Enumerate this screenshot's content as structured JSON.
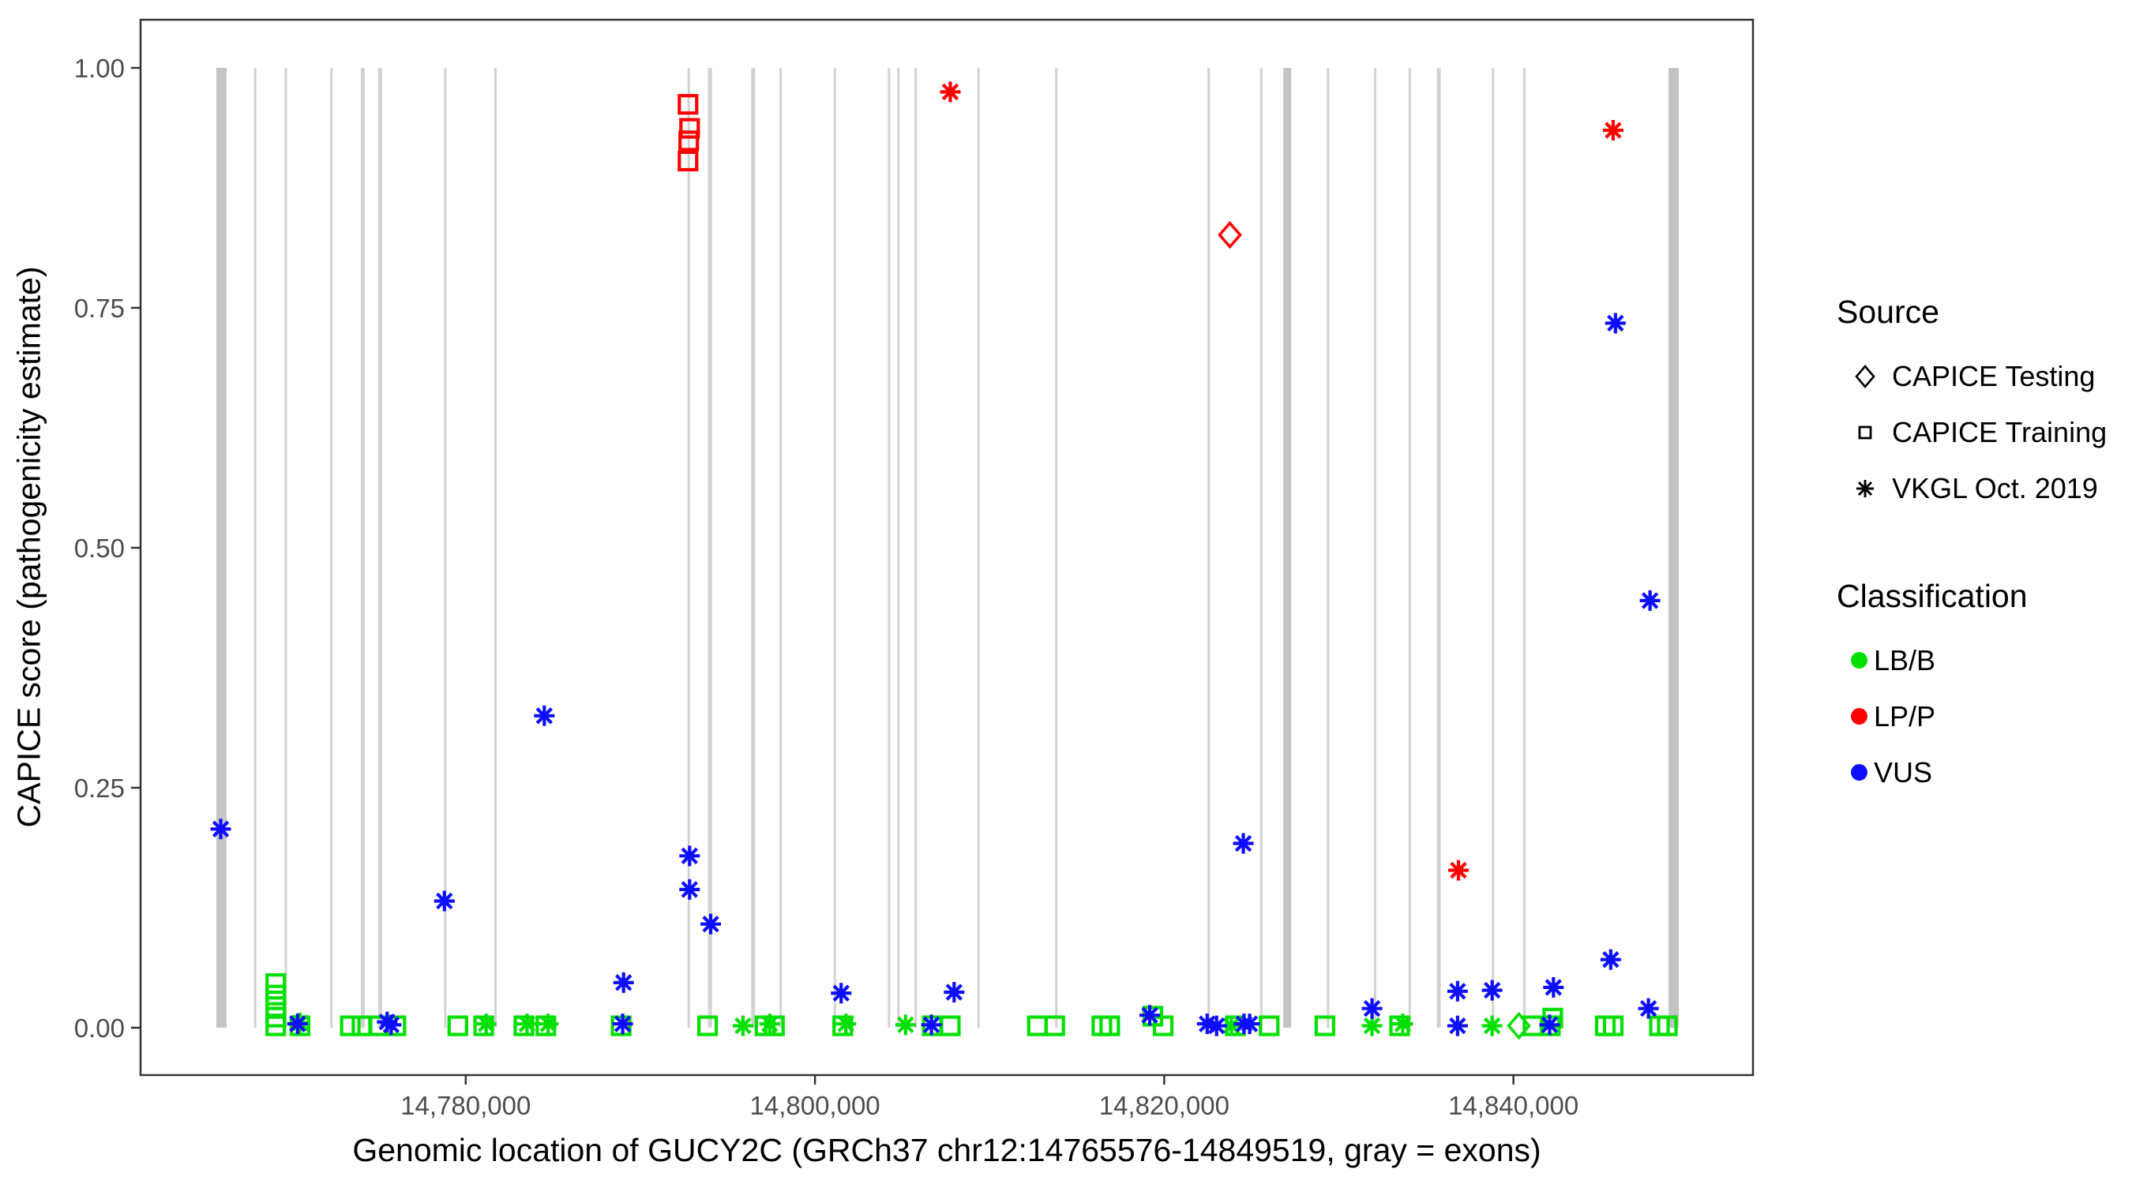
{
  "colors": {
    "LB/B": "#00E000",
    "LP/P": "#FF0000",
    "VUS": "#0D0DFF",
    "exon": "#D2D2D2",
    "exon_wide": "#C4C4C4",
    "axis_text": "#4D4D4D",
    "border": "#333333"
  },
  "legend": {
    "source": {
      "title": "Source",
      "items": [
        {
          "label": "CAPICE Testing",
          "shape": "diamond"
        },
        {
          "label": "CAPICE Training",
          "shape": "square"
        },
        {
          "label": "VKGL Oct. 2019",
          "shape": "asterisk"
        }
      ]
    },
    "classification": {
      "title": "Classification",
      "items": [
        {
          "label": "LB/B",
          "color": "#00E000"
        },
        {
          "label": "LP/P",
          "color": "#FF0000"
        },
        {
          "label": "VUS",
          "color": "#0D0DFF"
        }
      ]
    }
  },
  "chart_data": {
    "type": "scatter",
    "title": "",
    "xlabel": "Genomic location of GUCY2C (GRCh37 chr12:14765576-14849519, gray = exons)",
    "ylabel": "CAPICE score (pathogenicity estimate)",
    "x_domain": [
      14761379,
      14853716
    ],
    "y_domain": [
      -0.05,
      1.05
    ],
    "grid": false,
    "legend_position": "right",
    "x_ticks": [
      {
        "value": 14780000,
        "label": "14,780,000"
      },
      {
        "value": 14800000,
        "label": "14,800,000"
      },
      {
        "value": 14820000,
        "label": "14,820,000"
      },
      {
        "value": 14840000,
        "label": "14,840,000"
      }
    ],
    "y_ticks": [
      {
        "value": 0.0,
        "label": "0.00"
      },
      {
        "value": 0.25,
        "label": "0.25"
      },
      {
        "value": 0.5,
        "label": "0.50"
      },
      {
        "value": 0.75,
        "label": "0.75"
      },
      {
        "value": 1.0,
        "label": "1.00"
      }
    ],
    "exon_note": "gray vertical bars are exons drawn from score 0 to 1",
    "exons": [
      {
        "g": 14766011,
        "w": 13
      },
      {
        "g": 14767945,
        "w": 3
      },
      {
        "g": 14769699,
        "w": 3
      },
      {
        "g": 14772308,
        "w": 3
      },
      {
        "g": 14774107,
        "w": 5
      },
      {
        "g": 14775096,
        "w": 5
      },
      {
        "g": 14778829,
        "w": 3
      },
      {
        "g": 14781707,
        "w": 3
      },
      {
        "g": 14792772,
        "w": 3
      },
      {
        "g": 14793987,
        "w": 5
      },
      {
        "g": 14796460,
        "w": 5
      },
      {
        "g": 14798034,
        "w": 3
      },
      {
        "g": 14801137,
        "w": 3
      },
      {
        "g": 14804241,
        "w": 3
      },
      {
        "g": 14804780,
        "w": 3
      },
      {
        "g": 14805770,
        "w": 3
      },
      {
        "g": 14809368,
        "w": 3
      },
      {
        "g": 14813821,
        "w": 3
      },
      {
        "g": 14822546,
        "w": 3
      },
      {
        "g": 14825559,
        "w": 3
      },
      {
        "g": 14827044,
        "w": 10
      },
      {
        "g": 14829382,
        "w": 3
      },
      {
        "g": 14832081,
        "w": 3
      },
      {
        "g": 14834060,
        "w": 3
      },
      {
        "g": 14835724,
        "w": 5
      },
      {
        "g": 14838827,
        "w": 3
      },
      {
        "g": 14840626,
        "w": 3
      },
      {
        "g": 14849172,
        "w": 13
      }
    ],
    "points": [
      {
        "g": 14769120,
        "v": 0.046,
        "s": "square",
        "c": "LB/B"
      },
      {
        "g": 14769120,
        "v": 0.034,
        "s": "square",
        "c": "LB/B"
      },
      {
        "g": 14769120,
        "v": 0.022,
        "s": "square",
        "c": "LB/B"
      },
      {
        "g": 14769120,
        "v": 0.011,
        "s": "square",
        "c": "LB/B"
      },
      {
        "g": 14769120,
        "v": 0.002,
        "s": "square",
        "c": "LB/B"
      },
      {
        "g": 14770510,
        "v": 0.002,
        "s": "square",
        "c": "LB/B"
      },
      {
        "g": 14773390,
        "v": 0.002,
        "s": "square",
        "c": "LB/B"
      },
      {
        "g": 14774060,
        "v": 0.002,
        "s": "square",
        "c": "LB/B"
      },
      {
        "g": 14775010,
        "v": 0.002,
        "s": "square",
        "c": "LB/B"
      },
      {
        "g": 14776000,
        "v": 0.002,
        "s": "square",
        "c": "LB/B"
      },
      {
        "g": 14779550,
        "v": 0.002,
        "s": "square",
        "c": "LB/B"
      },
      {
        "g": 14781030,
        "v": 0.002,
        "s": "square",
        "c": "LB/B"
      },
      {
        "g": 14783330,
        "v": 0.002,
        "s": "square",
        "c": "LB/B"
      },
      {
        "g": 14784590,
        "v": 0.002,
        "s": "square",
        "c": "LB/B"
      },
      {
        "g": 14788900,
        "v": 0.002,
        "s": "square",
        "c": "LB/B"
      },
      {
        "g": 14793850,
        "v": 0.002,
        "s": "square",
        "c": "LB/B"
      },
      {
        "g": 14797140,
        "v": 0.002,
        "s": "square",
        "c": "LB/B"
      },
      {
        "g": 14797680,
        "v": 0.002,
        "s": "square",
        "c": "LB/B"
      },
      {
        "g": 14801590,
        "v": 0.002,
        "s": "square",
        "c": "LB/B"
      },
      {
        "g": 14806720,
        "v": 0.002,
        "s": "square",
        "c": "LB/B"
      },
      {
        "g": 14807750,
        "v": 0.002,
        "s": "square",
        "c": "LB/B"
      },
      {
        "g": 14812740,
        "v": 0.002,
        "s": "square",
        "c": "LB/B"
      },
      {
        "g": 14813730,
        "v": 0.002,
        "s": "square",
        "c": "LB/B"
      },
      {
        "g": 14816430,
        "v": 0.002,
        "s": "square",
        "c": "LB/B"
      },
      {
        "g": 14816880,
        "v": 0.002,
        "s": "square",
        "c": "LB/B"
      },
      {
        "g": 14819350,
        "v": 0.012,
        "s": "square",
        "c": "LB/B"
      },
      {
        "g": 14819940,
        "v": 0.002,
        "s": "square",
        "c": "LB/B"
      },
      {
        "g": 14824080,
        "v": 0.002,
        "s": "square",
        "c": "LB/B"
      },
      {
        "g": 14826010,
        "v": 0.002,
        "s": "square",
        "c": "LB/B"
      },
      {
        "g": 14829200,
        "v": 0.002,
        "s": "square",
        "c": "LB/B"
      },
      {
        "g": 14833480,
        "v": 0.002,
        "s": "square",
        "c": "LB/B"
      },
      {
        "g": 14841120,
        "v": 0.002,
        "s": "square",
        "c": "LB/B"
      },
      {
        "g": 14842250,
        "v": 0.01,
        "s": "square",
        "c": "LB/B"
      },
      {
        "g": 14842110,
        "v": 0.002,
        "s": "square",
        "c": "LB/B"
      },
      {
        "g": 14845260,
        "v": 0.002,
        "s": "square",
        "c": "LB/B"
      },
      {
        "g": 14845710,
        "v": 0.002,
        "s": "square",
        "c": "LB/B"
      },
      {
        "g": 14848360,
        "v": 0.002,
        "s": "square",
        "c": "LB/B"
      },
      {
        "g": 14848810,
        "v": 0.002,
        "s": "square",
        "c": "LB/B"
      },
      {
        "g": 14792730,
        "v": 0.962,
        "s": "square",
        "c": "LP/P"
      },
      {
        "g": 14792820,
        "v": 0.937,
        "s": "square",
        "c": "LP/P"
      },
      {
        "g": 14792770,
        "v": 0.924,
        "s": "square",
        "c": "LP/P"
      },
      {
        "g": 14792730,
        "v": 0.903,
        "s": "square",
        "c": "LP/P"
      },
      {
        "g": 14823760,
        "v": 0.826,
        "s": "diamond",
        "c": "LP/P"
      },
      {
        "g": 14840310,
        "v": 0.002,
        "s": "diamond",
        "c": "LB/B"
      },
      {
        "g": 14770510,
        "v": 0.005,
        "s": "asterisk",
        "c": "LB/B"
      },
      {
        "g": 14781170,
        "v": 0.004,
        "s": "asterisk",
        "c": "LB/B"
      },
      {
        "g": 14783510,
        "v": 0.004,
        "s": "asterisk",
        "c": "LB/B"
      },
      {
        "g": 14784720,
        "v": 0.004,
        "s": "asterisk",
        "c": "LB/B"
      },
      {
        "g": 14795880,
        "v": 0.002,
        "s": "asterisk",
        "c": "LB/B"
      },
      {
        "g": 14797410,
        "v": 0.004,
        "s": "asterisk",
        "c": "LB/B"
      },
      {
        "g": 14801770,
        "v": 0.004,
        "s": "asterisk",
        "c": "LB/B"
      },
      {
        "g": 14805190,
        "v": 0.003,
        "s": "asterisk",
        "c": "LB/B"
      },
      {
        "g": 14823850,
        "v": 0.002,
        "s": "asterisk",
        "c": "LB/B"
      },
      {
        "g": 14831900,
        "v": 0.002,
        "s": "asterisk",
        "c": "LB/B"
      },
      {
        "g": 14833660,
        "v": 0.004,
        "s": "asterisk",
        "c": "LB/B"
      },
      {
        "g": 14838780,
        "v": 0.002,
        "s": "asterisk",
        "c": "LB/B"
      },
      {
        "g": 14807750,
        "v": 0.975,
        "s": "asterisk",
        "c": "LP/P"
      },
      {
        "g": 14845710,
        "v": 0.935,
        "s": "asterisk",
        "c": "LP/P"
      },
      {
        "g": 14836850,
        "v": 0.164,
        "s": "asterisk",
        "c": "LP/P"
      },
      {
        "g": 14765970,
        "v": 0.207,
        "s": "asterisk",
        "c": "VUS"
      },
      {
        "g": 14778780,
        "v": 0.132,
        "s": "asterisk",
        "c": "VUS"
      },
      {
        "g": 14784500,
        "v": 0.325,
        "s": "asterisk",
        "c": "VUS"
      },
      {
        "g": 14789040,
        "v": 0.047,
        "s": "asterisk",
        "c": "VUS"
      },
      {
        "g": 14792820,
        "v": 0.179,
        "s": "asterisk",
        "c": "VUS"
      },
      {
        "g": 14792820,
        "v": 0.144,
        "s": "asterisk",
        "c": "VUS"
      },
      {
        "g": 14794030,
        "v": 0.108,
        "s": "asterisk",
        "c": "VUS"
      },
      {
        "g": 14801500,
        "v": 0.036,
        "s": "asterisk",
        "c": "VUS"
      },
      {
        "g": 14807970,
        "v": 0.037,
        "s": "asterisk",
        "c": "VUS"
      },
      {
        "g": 14819170,
        "v": 0.013,
        "s": "asterisk",
        "c": "VUS"
      },
      {
        "g": 14824530,
        "v": 0.192,
        "s": "asterisk",
        "c": "VUS"
      },
      {
        "g": 14845840,
        "v": 0.734,
        "s": "asterisk",
        "c": "VUS"
      },
      {
        "g": 14847820,
        "v": 0.445,
        "s": "asterisk",
        "c": "VUS"
      },
      {
        "g": 14836800,
        "v": 0.038,
        "s": "asterisk",
        "c": "VUS"
      },
      {
        "g": 14838780,
        "v": 0.039,
        "s": "asterisk",
        "c": "VUS"
      },
      {
        "g": 14842290,
        "v": 0.042,
        "s": "asterisk",
        "c": "VUS"
      },
      {
        "g": 14845570,
        "v": 0.071,
        "s": "asterisk",
        "c": "VUS"
      },
      {
        "g": 14847730,
        "v": 0.02,
        "s": "asterisk",
        "c": "VUS"
      },
      {
        "g": 14831900,
        "v": 0.02,
        "s": "asterisk",
        "c": "VUS"
      },
      {
        "g": 14770370,
        "v": 0.004,
        "s": "asterisk",
        "c": "VUS"
      },
      {
        "g": 14775500,
        "v": 0.006,
        "s": "asterisk",
        "c": "VUS"
      },
      {
        "g": 14775730,
        "v": 0.003,
        "s": "asterisk",
        "c": "VUS"
      },
      {
        "g": 14788990,
        "v": 0.004,
        "s": "asterisk",
        "c": "VUS"
      },
      {
        "g": 14806670,
        "v": 0.003,
        "s": "asterisk",
        "c": "VUS"
      },
      {
        "g": 14822460,
        "v": 0.004,
        "s": "asterisk",
        "c": "VUS"
      },
      {
        "g": 14823000,
        "v": 0.002,
        "s": "asterisk",
        "c": "VUS"
      },
      {
        "g": 14824570,
        "v": 0.004,
        "s": "asterisk",
        "c": "VUS"
      },
      {
        "g": 14824890,
        "v": 0.004,
        "s": "asterisk",
        "c": "VUS"
      },
      {
        "g": 14836800,
        "v": 0.002,
        "s": "asterisk",
        "c": "VUS"
      },
      {
        "g": 14842070,
        "v": 0.003,
        "s": "asterisk",
        "c": "VUS"
      }
    ]
  }
}
